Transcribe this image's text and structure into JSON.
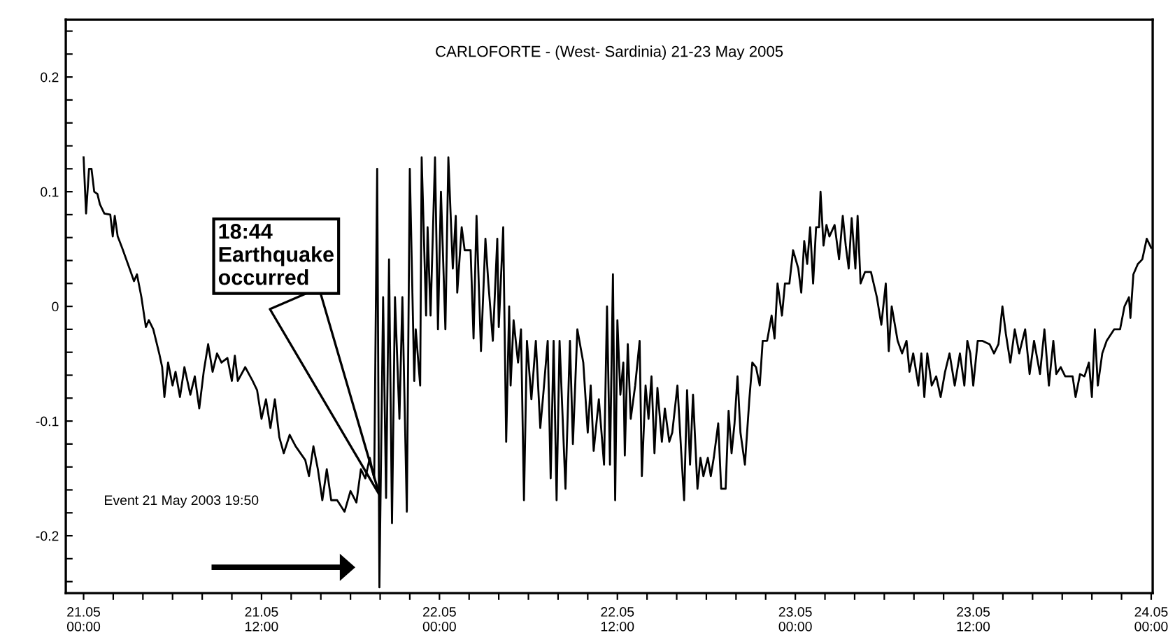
{
  "chart_data": {
    "type": "line",
    "title": "CARLOFORTE - (West- Sardinia) 21-23 May 2005",
    "x": [
      "2005-05-21T00:00",
      "2005-05-21T00:10",
      "2005-05-21T00:22",
      "2005-05-21T00:32",
      "2005-05-21T00:43",
      "2005-05-21T00:56",
      "2005-05-21T01:06",
      "2005-05-21T01:24",
      "2005-05-21T01:48",
      "2005-05-21T01:58",
      "2005-05-21T02:06",
      "2005-05-21T02:18",
      "2005-05-21T02:36",
      "2005-05-21T03:06",
      "2005-05-21T03:24",
      "2005-05-21T03:36",
      "2005-05-21T03:54",
      "2005-05-21T04:12",
      "2005-05-21T04:24",
      "2005-05-21T04:42",
      "2005-05-21T05:06",
      "2005-05-21T05:18",
      "2005-05-21T05:27",
      "2005-05-21T05:42",
      "2005-05-21T06:00",
      "2005-05-21T06:12",
      "2005-05-21T06:30",
      "2005-05-21T06:48",
      "2005-05-21T07:12",
      "2005-05-21T07:30",
      "2005-05-21T07:48",
      "2005-05-21T08:06",
      "2005-05-21T08:24",
      "2005-05-21T08:42",
      "2005-05-21T09:00",
      "2005-05-21T09:18",
      "2005-05-21T09:42",
      "2005-05-21T10:00",
      "2005-05-21T10:12",
      "2005-05-21T10:24",
      "2005-05-21T10:54",
      "2005-05-21T11:24",
      "2005-05-21T11:42",
      "2005-05-21T12:00",
      "2005-05-21T12:18",
      "2005-05-21T12:36",
      "2005-05-21T12:54",
      "2005-05-21T13:12",
      "2005-05-21T13:30",
      "2005-05-21T13:54",
      "2005-05-21T14:18",
      "2005-05-21T14:57",
      "2005-05-21T15:12",
      "2005-05-21T15:30",
      "2005-05-21T15:48",
      "2005-05-21T16:06",
      "2005-05-21T16:24",
      "2005-05-21T16:42",
      "2005-05-21T17:06",
      "2005-05-21T17:36",
      "2005-05-21T18:00",
      "2005-05-21T18:24",
      "2005-05-21T18:42",
      "2005-05-21T19:00",
      "2005-05-21T19:18",
      "2005-05-21T19:36",
      "2005-05-21T19:48",
      "2005-05-21T19:57",
      "2005-05-21T20:12",
      "2005-05-21T20:24",
      "2005-05-21T20:36",
      "2005-05-21T20:48",
      "2005-05-21T21:00",
      "2005-05-21T21:18",
      "2005-05-21T21:30",
      "2005-05-21T21:48",
      "2005-05-21T22:00",
      "2005-05-21T22:18",
      "2005-05-21T22:24",
      "2005-05-21T22:42",
      "2005-05-21T22:48",
      "2005-05-21T23:06",
      "2005-05-21T23:12",
      "2005-05-21T23:24",
      "2005-05-21T23:42",
      "2005-05-21T23:54",
      "2005-05-22T00:06",
      "2005-05-22T00:24",
      "2005-05-22T00:36",
      "2005-05-22T00:54",
      "2005-05-22T01:06",
      "2005-05-22T01:12",
      "2005-05-22T01:30",
      "2005-05-22T01:42",
      "2005-05-22T02:06",
      "2005-05-22T02:18",
      "2005-05-22T02:30",
      "2005-05-22T02:48",
      "2005-05-22T03:06",
      "2005-05-22T03:18",
      "2005-05-22T03:36",
      "2005-05-22T03:54",
      "2005-05-22T04:00",
      "2005-05-22T04:18",
      "2005-05-22T04:30",
      "2005-05-22T04:42",
      "2005-05-22T04:48",
      "2005-05-22T05:00",
      "2005-05-22T05:18",
      "2005-05-22T05:30",
      "2005-05-22T05:42",
      "2005-05-22T05:54",
      "2005-05-22T06:12",
      "2005-05-22T06:30",
      "2005-05-22T06:48",
      "2005-05-22T07:00",
      "2005-05-22T07:18",
      "2005-05-22T07:30",
      "2005-05-22T07:42",
      "2005-05-22T07:54",
      "2005-05-22T08:06",
      "2005-05-22T08:30",
      "2005-05-22T08:48",
      "2005-05-22T09:00",
      "2005-05-22T09:18",
      "2005-05-22T09:42",
      "2005-05-22T10:00",
      "2005-05-22T10:12",
      "2005-05-22T10:24",
      "2005-05-22T10:45",
      "2005-05-22T11:06",
      "2005-05-22T11:18",
      "2005-05-22T11:30",
      "2005-05-22T11:42",
      "2005-05-22T11:51",
      "2005-05-22T12:00",
      "2005-05-22T12:12",
      "2005-05-22T12:24",
      "2005-05-22T12:30",
      "2005-05-22T12:42",
      "2005-05-22T12:54",
      "2005-05-22T13:12",
      "2005-05-22T13:30",
      "2005-05-22T13:39",
      "2005-05-22T13:54",
      "2005-05-22T14:06",
      "2005-05-22T14:18",
      "2005-05-22T14:30",
      "2005-05-22T14:42",
      "2005-05-22T15:00",
      "2005-05-22T15:12",
      "2005-05-22T15:30",
      "2005-05-22T15:42",
      "2005-05-22T16:03",
      "2005-05-22T16:18",
      "2005-05-22T16:30",
      "2005-05-22T16:42",
      "2005-05-22T16:54",
      "2005-05-22T17:06",
      "2005-05-22T17:24",
      "2005-05-22T17:36",
      "2005-05-22T17:48",
      "2005-05-22T18:06",
      "2005-05-22T18:18",
      "2005-05-22T18:30",
      "2005-05-22T18:48",
      "2005-05-22T19:00",
      "2005-05-22T19:18",
      "2005-05-22T19:30",
      "2005-05-22T19:42",
      "2005-05-22T19:54",
      "2005-05-22T20:06",
      "2005-05-22T20:18",
      "2005-05-22T20:36",
      "2005-05-22T20:54",
      "2005-05-22T21:06",
      "2005-05-22T21:21",
      "2005-05-22T21:36",
      "2005-05-22T21:48",
      "2005-05-22T22:06",
      "2005-05-22T22:24",
      "2005-05-22T22:36",
      "2005-05-22T22:48",
      "2005-05-22T23:06",
      "2005-05-22T23:18",
      "2005-05-22T23:36",
      "2005-05-22T23:51",
      "2005-05-23T00:12",
      "2005-05-23T00:24",
      "2005-05-23T00:36",
      "2005-05-23T00:48",
      "2005-05-23T01:00",
      "2005-05-23T01:12",
      "2005-05-23T01:24",
      "2005-05-23T01:36",
      "2005-05-23T01:42",
      "2005-05-23T01:54",
      "2005-05-23T02:06",
      "2005-05-23T02:18",
      "2005-05-23T02:39",
      "2005-05-23T02:57",
      "2005-05-23T03:12",
      "2005-05-23T03:24",
      "2005-05-23T03:36",
      "2005-05-23T03:48",
      "2005-05-23T04:03",
      "2005-05-23T04:12",
      "2005-05-23T04:24",
      "2005-05-23T04:42",
      "2005-05-23T05:06",
      "2005-05-23T05:30",
      "2005-05-23T05:48",
      "2005-05-23T06:06",
      "2005-05-23T06:18",
      "2005-05-23T06:30",
      "2005-05-23T06:54",
      "2005-05-23T07:12",
      "2005-05-23T07:30",
      "2005-05-23T07:42",
      "2005-05-23T07:57",
      "2005-05-23T08:18",
      "2005-05-23T08:30",
      "2005-05-23T08:42",
      "2005-05-23T08:54",
      "2005-05-23T09:12",
      "2005-05-23T09:30",
      "2005-05-23T09:48",
      "2005-05-23T10:06",
      "2005-05-23T10:24",
      "2005-05-23T10:45",
      "2005-05-23T11:06",
      "2005-05-23T11:24",
      "2005-05-23T11:36",
      "2005-05-23T11:48",
      "2005-05-23T12:00",
      "2005-05-23T12:18",
      "2005-05-23T12:36",
      "2005-05-23T13:06",
      "2005-05-23T13:24",
      "2005-05-23T13:42",
      "2005-05-23T13:58",
      "2005-05-23T14:12",
      "2005-05-23T14:30",
      "2005-05-23T14:48",
      "2005-05-23T15:06",
      "2005-05-23T15:30",
      "2005-05-23T15:48",
      "2005-05-23T16:06",
      "2005-05-23T16:30",
      "2005-05-23T16:48",
      "2005-05-23T17:06",
      "2005-05-23T17:24",
      "2005-05-23T17:36",
      "2005-05-23T17:54",
      "2005-05-23T18:12",
      "2005-05-23T18:42",
      "2005-05-23T18:54",
      "2005-05-23T19:12",
      "2005-05-23T19:30",
      "2005-05-23T19:48",
      "2005-05-23T20:00",
      "2005-05-23T20:12",
      "2005-05-23T20:24",
      "2005-05-23T20:42",
      "2005-05-23T21:00",
      "2005-05-23T21:30",
      "2005-05-23T21:54",
      "2005-05-23T22:12",
      "2005-05-23T22:30",
      "2005-05-23T22:36",
      "2005-05-23T22:48",
      "2005-05-23T23:06",
      "2005-05-23T23:24",
      "2005-05-23T23:42",
      "2005-05-24T00:00"
    ],
    "values": [
      0.13,
      0.081,
      0.12,
      0.12,
      0.1,
      0.098,
      0.089,
      0.081,
      0.08,
      0.061,
      0.079,
      0.061,
      0.051,
      0.033,
      0.022,
      0.028,
      0.008,
      -0.018,
      -0.012,
      -0.02,
      -0.041,
      -0.053,
      -0.079,
      -0.049,
      -0.069,
      -0.057,
      -0.079,
      -0.053,
      -0.077,
      -0.061,
      -0.089,
      -0.057,
      -0.033,
      -0.057,
      -0.041,
      -0.049,
      -0.045,
      -0.065,
      -0.043,
      -0.065,
      -0.053,
      -0.065,
      -0.073,
      -0.098,
      -0.081,
      -0.106,
      -0.081,
      -0.114,
      -0.128,
      -0.112,
      -0.122,
      -0.134,
      -0.148,
      -0.122,
      -0.142,
      -0.169,
      -0.142,
      -0.169,
      -0.169,
      -0.179,
      -0.161,
      -0.171,
      -0.142,
      -0.15,
      -0.132,
      -0.15,
      0.12,
      -0.245,
      0.008,
      -0.167,
      0.041,
      -0.189,
      0.008,
      -0.098,
      0.008,
      -0.179,
      0.12,
      -0.065,
      -0.02,
      -0.069,
      0.13,
      -0.008,
      0.069,
      -0.008,
      0.13,
      -0.02,
      0.1,
      -0.02,
      0.13,
      0.033,
      0.079,
      0.012,
      0.069,
      0.049,
      0.049,
      -0.028,
      0.079,
      -0.039,
      0.059,
      0.02,
      -0.03,
      0.059,
      -0.018,
      0.069,
      -0.118,
      0,
      -0.069,
      -0.012,
      -0.049,
      -0.02,
      -0.169,
      -0.03,
      -0.081,
      -0.03,
      -0.106,
      -0.077,
      -0.03,
      -0.15,
      -0.03,
      -0.169,
      -0.03,
      -0.159,
      -0.03,
      -0.12,
      -0.02,
      -0.049,
      -0.11,
      -0.069,
      -0.126,
      -0.081,
      -0.138,
      0,
      -0.138,
      0.028,
      -0.169,
      -0.012,
      -0.077,
      -0.049,
      -0.13,
      -0.033,
      -0.098,
      -0.069,
      -0.03,
      -0.148,
      -0.069,
      -0.098,
      -0.061,
      -0.128,
      -0.071,
      -0.118,
      -0.089,
      -0.118,
      -0.11,
      -0.069,
      -0.126,
      -0.169,
      -0.073,
      -0.138,
      -0.077,
      -0.159,
      -0.132,
      -0.148,
      -0.132,
      -0.148,
      -0.132,
      -0.102,
      -0.159,
      -0.159,
      -0.091,
      -0.128,
      -0.102,
      -0.061,
      -0.11,
      -0.138,
      -0.081,
      -0.049,
      -0.053,
      -0.069,
      -0.03,
      -0.03,
      -0.008,
      -0.028,
      0.02,
      -0.008,
      0.02,
      0.02,
      0.049,
      0.033,
      0.012,
      0.057,
      0.037,
      0.069,
      0.02,
      0.069,
      0.069,
      0.1,
      0.053,
      0.071,
      0.061,
      0.071,
      0.041,
      0.079,
      0.053,
      0.033,
      0.077,
      0.033,
      0.079,
      0.02,
      0.03,
      0.03,
      0.008,
      -0.016,
      0.02,
      -0.039,
      0,
      -0.03,
      -0.041,
      -0.03,
      -0.057,
      -0.041,
      -0.069,
      -0.041,
      -0.079,
      -0.041,
      -0.069,
      -0.061,
      -0.079,
      -0.057,
      -0.041,
      -0.069,
      -0.041,
      -0.069,
      -0.03,
      -0.041,
      -0.069,
      -0.03,
      -0.03,
      -0.033,
      -0.041,
      -0.033,
      0,
      -0.024,
      -0.049,
      -0.02,
      -0.041,
      -0.02,
      -0.059,
      -0.03,
      -0.059,
      -0.02,
      -0.069,
      -0.03,
      -0.059,
      -0.053,
      -0.061,
      -0.061,
      -0.079,
      -0.059,
      -0.061,
      -0.049,
      -0.079,
      -0.02,
      -0.069,
      -0.041,
      -0.03,
      -0.02,
      -0.02,
      0,
      0.008,
      -0.01,
      0.028,
      0.037,
      0.041,
      0.059,
      0.051
    ],
    "color": "#000000",
    "xlim": [
      "2005-05-20T22:48",
      "2005-05-24T00:06"
    ],
    "xticks": [
      {
        "value": "2005-05-21T00:00",
        "label": "21.05\n00:00"
      },
      {
        "value": "2005-05-21T02:00",
        "label": null
      },
      {
        "value": "2005-05-21T04:00",
        "label": null
      },
      {
        "value": "2005-05-21T06:00",
        "label": null
      },
      {
        "value": "2005-05-21T08:00",
        "label": null
      },
      {
        "value": "2005-05-21T10:00",
        "label": null
      },
      {
        "value": "2005-05-21T12:00",
        "label": "21.05\n12:00"
      },
      {
        "value": "2005-05-21T14:00",
        "label": null
      },
      {
        "value": "2005-05-21T16:00",
        "label": null
      },
      {
        "value": "2005-05-21T18:00",
        "label": null
      },
      {
        "value": "2005-05-21T20:00",
        "label": null
      },
      {
        "value": "2005-05-21T22:00",
        "label": null
      },
      {
        "value": "2005-05-22T00:00",
        "label": "22.05\n00:00"
      },
      {
        "value": "2005-05-22T02:00",
        "label": null
      },
      {
        "value": "2005-05-22T04:00",
        "label": null
      },
      {
        "value": "2005-05-22T06:00",
        "label": null
      },
      {
        "value": "2005-05-22T08:00",
        "label": null
      },
      {
        "value": "2005-05-22T10:00",
        "label": null
      },
      {
        "value": "2005-05-22T12:00",
        "label": "22.05\n12:00"
      },
      {
        "value": "2005-05-22T14:00",
        "label": null
      },
      {
        "value": "2005-05-22T16:00",
        "label": null
      },
      {
        "value": "2005-05-22T18:00",
        "label": null
      },
      {
        "value": "2005-05-22T20:00",
        "label": null
      },
      {
        "value": "2005-05-22T22:00",
        "label": null
      },
      {
        "value": "2005-05-23T00:00",
        "label": "23.05\n00:00"
      },
      {
        "value": "2005-05-23T02:00",
        "label": null
      },
      {
        "value": "2005-05-23T04:00",
        "label": null
      },
      {
        "value": "2005-05-23T06:00",
        "label": null
      },
      {
        "value": "2005-05-23T08:00",
        "label": null
      },
      {
        "value": "2005-05-23T10:00",
        "label": null
      },
      {
        "value": "2005-05-23T12:00",
        "label": "23.05\n12:00"
      },
      {
        "value": "2005-05-23T14:00",
        "label": null
      },
      {
        "value": "2005-05-23T16:00",
        "label": null
      },
      {
        "value": "2005-05-23T18:00",
        "label": null
      },
      {
        "value": "2005-05-23T20:00",
        "label": null
      },
      {
        "value": "2005-05-23T22:00",
        "label": null
      },
      {
        "value": "2005-05-24T00:00",
        "label": "24.05\n00:00"
      }
    ],
    "ylim": [
      -0.25,
      0.25
    ],
    "yticks": [
      {
        "value": -0.24,
        "label": null
      },
      {
        "value": -0.22,
        "label": null
      },
      -0.2,
      {
        "value": -0.18,
        "label": null
      },
      {
        "value": -0.16,
        "label": null
      },
      {
        "value": -0.14,
        "label": null
      },
      {
        "value": -0.12,
        "label": null
      },
      -0.1,
      {
        "value": -0.08,
        "label": null
      },
      {
        "value": -0.06,
        "label": null
      },
      {
        "value": -0.04,
        "label": null
      },
      {
        "value": -0.02,
        "label": null
      },
      0,
      {
        "value": 0.02,
        "label": null
      },
      {
        "value": 0.04,
        "label": null
      },
      {
        "value": 0.06,
        "label": null
      },
      {
        "value": 0.08,
        "label": null
      },
      0.1,
      {
        "value": 0.12,
        "label": null
      },
      {
        "value": 0.14,
        "label": null
      },
      {
        "value": 0.16,
        "label": null
      },
      {
        "value": 0.18,
        "label": null
      },
      0.2,
      {
        "value": 0.22,
        "label": null
      },
      {
        "value": 0.24,
        "label": null
      }
    ],
    "grid": false,
    "annotations": [
      "18:44\nEarthquake\noccurred",
      "Event 21 May 2003 19:50"
    ]
  }
}
